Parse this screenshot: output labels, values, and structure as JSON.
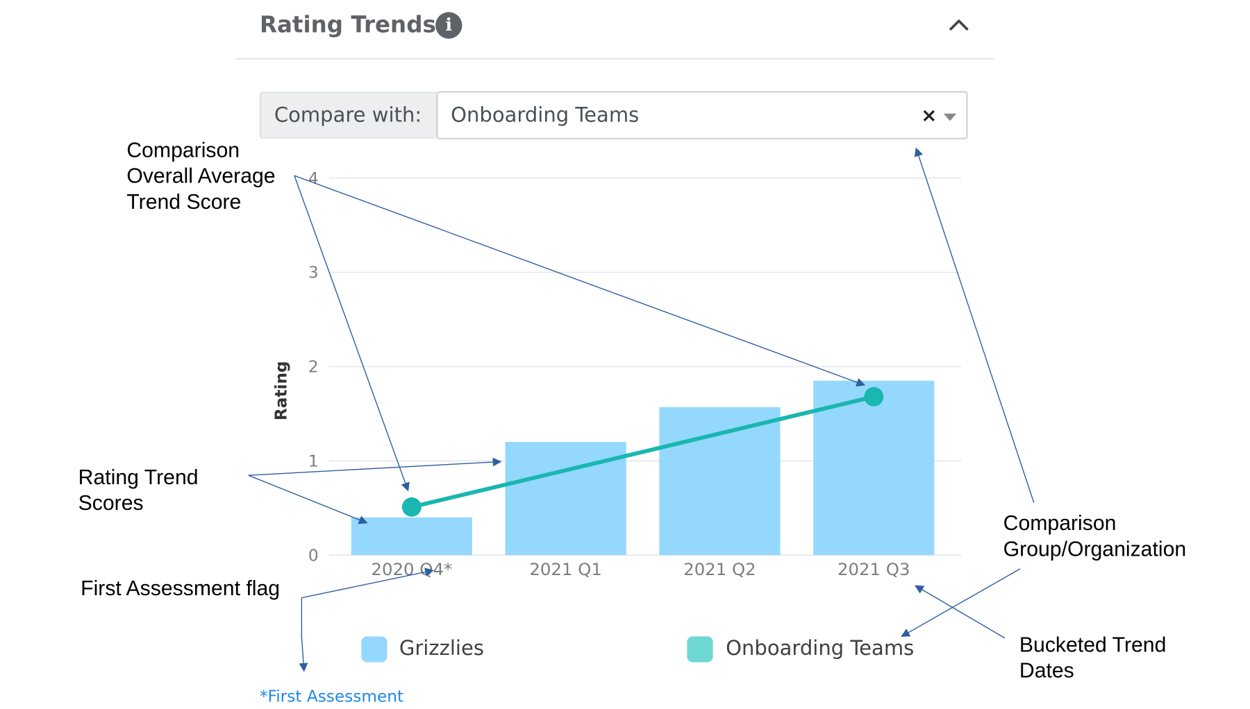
{
  "header": {
    "title": "Rating Trends",
    "info_icon": "info-icon",
    "collapse_icon": "chevron-up-icon"
  },
  "compare": {
    "label": "Compare with:",
    "selected": "Onboarding Teams",
    "clear_glyph": "×"
  },
  "legend": {
    "items": [
      {
        "name": "Grizzlies",
        "color": "#95d8fd"
      },
      {
        "name": "Onboarding Teams",
        "color": "#6cd7d3"
      }
    ]
  },
  "footnote": "*First Assessment",
  "annotations": {
    "comparison_average": "Comparison\nOverall Average\nTrend Score",
    "rating_trend_scores": "Rating Trend\nScores",
    "first_assessment_flag": "First Assessment flag",
    "comparison_group": "Comparison\nGroup/Organization",
    "bucketed_dates": "Bucketed Trend\nDates"
  },
  "chart_data": {
    "type": "bar",
    "title": "Rating Trends",
    "xlabel": "",
    "ylabel": "Rating",
    "ylim": [
      0,
      4
    ],
    "yticks": [
      0,
      1,
      2,
      3,
      4
    ],
    "grid": true,
    "legend_position": "bottom",
    "categories": [
      "2020 Q4*",
      "2021 Q1",
      "2021 Q2",
      "2021 Q3"
    ],
    "series": [
      {
        "name": "Grizzlies",
        "type": "bar",
        "color": "#95d8fd",
        "values": [
          0.4,
          1.2,
          1.57,
          1.85
        ]
      },
      {
        "name": "Onboarding Teams",
        "type": "line",
        "color": "#1ab6b1",
        "points": [
          {
            "category": "2020 Q4*",
            "value": 0.51
          },
          {
            "category": "2021 Q3",
            "value": 1.68
          }
        ]
      }
    ]
  }
}
